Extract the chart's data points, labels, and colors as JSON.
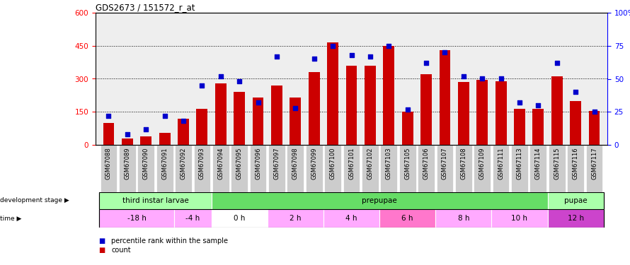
{
  "title": "GDS2673 / 151572_r_at",
  "samples": [
    "GSM67088",
    "GSM67089",
    "GSM67090",
    "GSM67091",
    "GSM67092",
    "GSM67093",
    "GSM67094",
    "GSM67095",
    "GSM67096",
    "GSM67097",
    "GSM67098",
    "GSM67099",
    "GSM67100",
    "GSM67101",
    "GSM67102",
    "GSM67103",
    "GSM67105",
    "GSM67106",
    "GSM67107",
    "GSM67108",
    "GSM67109",
    "GSM67111",
    "GSM67113",
    "GSM67114",
    "GSM67115",
    "GSM67116",
    "GSM67117"
  ],
  "counts": [
    100,
    30,
    40,
    55,
    120,
    165,
    280,
    240,
    215,
    270,
    215,
    330,
    465,
    360,
    360,
    450,
    150,
    320,
    430,
    285,
    295,
    290,
    165,
    165,
    310,
    200,
    155
  ],
  "percentile_ranks": [
    22,
    8,
    12,
    22,
    18,
    45,
    52,
    48,
    32,
    67,
    28,
    65,
    75,
    68,
    67,
    75,
    27,
    62,
    70,
    52,
    50,
    50,
    32,
    30,
    62,
    40,
    25
  ],
  "bar_color": "#cc0000",
  "dot_color": "#0000cc",
  "ylim_left": [
    0,
    600
  ],
  "ylim_right": [
    0,
    100
  ],
  "yticks_left": [
    0,
    150,
    300,
    450,
    600
  ],
  "yticks_right": [
    0,
    25,
    50,
    75,
    100
  ],
  "ytick_labels_left": [
    "0",
    "150",
    "300",
    "450",
    "600"
  ],
  "ytick_labels_right": [
    "0",
    "25",
    "50",
    "75",
    "100%"
  ],
  "dev_stages": [
    {
      "name": "third instar larvae",
      "start": 0,
      "end": 6,
      "color": "#aaffaa"
    },
    {
      "name": "prepupae",
      "start": 6,
      "end": 24,
      "color": "#66dd66"
    },
    {
      "name": "pupae",
      "start": 24,
      "end": 27,
      "color": "#aaffaa"
    }
  ],
  "time_stages": [
    {
      "name": "-18 h",
      "start": 0,
      "end": 4,
      "color": "#ffaaff"
    },
    {
      "name": "-4 h",
      "start": 4,
      "end": 6,
      "color": "#ffaaff"
    },
    {
      "name": "0 h",
      "start": 6,
      "end": 9,
      "color": "#ffffff"
    },
    {
      "name": "2 h",
      "start": 9,
      "end": 12,
      "color": "#ffaaff"
    },
    {
      "name": "4 h",
      "start": 12,
      "end": 15,
      "color": "#ffaaff"
    },
    {
      "name": "6 h",
      "start": 15,
      "end": 18,
      "color": "#ff77cc"
    },
    {
      "name": "8 h",
      "start": 18,
      "end": 21,
      "color": "#ffaaff"
    },
    {
      "name": "10 h",
      "start": 21,
      "end": 24,
      "color": "#ffaaff"
    },
    {
      "name": "12 h",
      "start": 24,
      "end": 27,
      "color": "#cc44cc"
    }
  ],
  "axes_bg": "#eeeeee",
  "label_bg": "#cccccc"
}
